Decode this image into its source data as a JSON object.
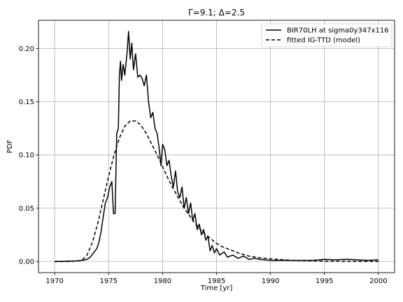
{
  "chart_data": {
    "type": "line",
    "title": "Γ=9.1; Δ=2.5",
    "xlabel": "Time [yr]",
    "ylabel": "PDF",
    "xlim": [
      1968.5,
      2001.5
    ],
    "ylim": [
      -0.0105,
      0.2265
    ],
    "grid": true,
    "legend_position": "top-right",
    "xticks": [
      1970,
      1975,
      1980,
      1985,
      1990,
      1995,
      2000
    ],
    "xtick_labels": [
      "1970",
      "1975",
      "1980",
      "1985",
      "1990",
      "1995",
      "2000"
    ],
    "yticks": [
      0.0,
      0.05,
      0.1,
      0.15,
      0.2
    ],
    "ytick_labels": [
      "0.00",
      "0.05",
      "0.10",
      "0.15",
      "0.20"
    ],
    "series": [
      {
        "name": "BIR70LH at sigma0y347x116",
        "style": "solid",
        "color": "#000000",
        "points": [
          [
            1970.0,
            0.0
          ],
          [
            1972.0,
            0.0005
          ],
          [
            1972.5,
            0.001
          ],
          [
            1973.0,
            0.002
          ],
          [
            1973.3,
            0.004
          ],
          [
            1973.6,
            0.008
          ],
          [
            1973.9,
            0.012
          ],
          [
            1974.1,
            0.018
          ],
          [
            1974.3,
            0.028
          ],
          [
            1974.5,
            0.042
          ],
          [
            1974.7,
            0.055
          ],
          [
            1974.9,
            0.06
          ],
          [
            1975.1,
            0.07
          ],
          [
            1975.3,
            0.075
          ],
          [
            1975.45,
            0.045
          ],
          [
            1975.6,
            0.045
          ],
          [
            1975.75,
            0.12
          ],
          [
            1975.9,
            0.125
          ],
          [
            1976.0,
            0.175
          ],
          [
            1976.1,
            0.188
          ],
          [
            1976.2,
            0.17
          ],
          [
            1976.35,
            0.185
          ],
          [
            1976.5,
            0.175
          ],
          [
            1976.7,
            0.195
          ],
          [
            1976.85,
            0.216
          ],
          [
            1977.0,
            0.19
          ],
          [
            1977.15,
            0.205
          ],
          [
            1977.3,
            0.18
          ],
          [
            1977.5,
            0.195
          ],
          [
            1977.7,
            0.173
          ],
          [
            1977.9,
            0.175
          ],
          [
            1978.1,
            0.172
          ],
          [
            1978.3,
            0.165
          ],
          [
            1978.5,
            0.175
          ],
          [
            1978.7,
            0.15
          ],
          [
            1978.9,
            0.135
          ],
          [
            1979.1,
            0.14
          ],
          [
            1979.3,
            0.125
          ],
          [
            1979.5,
            0.12
          ],
          [
            1979.7,
            0.105
          ],
          [
            1979.85,
            0.09
          ],
          [
            1980.0,
            0.11
          ],
          [
            1980.2,
            0.105
          ],
          [
            1980.4,
            0.09
          ],
          [
            1980.6,
            0.095
          ],
          [
            1980.8,
            0.08
          ],
          [
            1981.0,
            0.07
          ],
          [
            1981.2,
            0.085
          ],
          [
            1981.4,
            0.065
          ],
          [
            1981.6,
            0.06
          ],
          [
            1981.8,
            0.07
          ],
          [
            1982.0,
            0.05
          ],
          [
            1982.2,
            0.06
          ],
          [
            1982.4,
            0.045
          ],
          [
            1982.6,
            0.055
          ],
          [
            1982.8,
            0.038
          ],
          [
            1983.0,
            0.045
          ],
          [
            1983.2,
            0.03
          ],
          [
            1983.4,
            0.035
          ],
          [
            1983.6,
            0.025
          ],
          [
            1983.8,
            0.03
          ],
          [
            1984.0,
            0.02
          ],
          [
            1984.2,
            0.024
          ],
          [
            1984.4,
            0.01
          ],
          [
            1984.6,
            0.015
          ],
          [
            1984.8,
            0.008
          ],
          [
            1985.0,
            0.012
          ],
          [
            1985.3,
            0.006
          ],
          [
            1985.7,
            0.009
          ],
          [
            1986.0,
            0.004
          ],
          [
            1986.5,
            0.006
          ],
          [
            1987.0,
            0.003
          ],
          [
            1987.5,
            0.005
          ],
          [
            1988.0,
            0.002
          ],
          [
            1988.5,
            0.003
          ],
          [
            1989.0,
            0.002
          ],
          [
            1990.0,
            0.001
          ],
          [
            1992.0,
            0.001
          ],
          [
            1994.0,
            0.001
          ],
          [
            1995.0,
            0.002
          ],
          [
            1996.0,
            0.0015
          ],
          [
            1997.0,
            0.002
          ],
          [
            1998.0,
            0.0015
          ],
          [
            1999.0,
            0.001
          ],
          [
            2000.0,
            0.0015
          ]
        ]
      },
      {
        "name": "fitted IG-TTD (model)",
        "style": "dashed",
        "color": "#000000",
        "points": [
          [
            1970.0,
            0.0
          ],
          [
            1971.5,
            0.0
          ],
          [
            1972.5,
            0.001
          ],
          [
            1973.0,
            0.006
          ],
          [
            1973.5,
            0.018
          ],
          [
            1974.0,
            0.036
          ],
          [
            1974.5,
            0.058
          ],
          [
            1975.0,
            0.08
          ],
          [
            1975.5,
            0.1
          ],
          [
            1976.0,
            0.116
          ],
          [
            1976.5,
            0.127
          ],
          [
            1977.0,
            0.132
          ],
          [
            1977.5,
            0.132
          ],
          [
            1978.0,
            0.128
          ],
          [
            1978.5,
            0.12
          ],
          [
            1979.0,
            0.11
          ],
          [
            1979.5,
            0.1
          ],
          [
            1980.0,
            0.089
          ],
          [
            1980.5,
            0.078
          ],
          [
            1981.0,
            0.068
          ],
          [
            1981.5,
            0.059
          ],
          [
            1982.0,
            0.05
          ],
          [
            1982.5,
            0.043
          ],
          [
            1983.0,
            0.036
          ],
          [
            1983.5,
            0.03
          ],
          [
            1984.0,
            0.025
          ],
          [
            1984.5,
            0.021
          ],
          [
            1985.0,
            0.017
          ],
          [
            1985.5,
            0.014
          ],
          [
            1986.0,
            0.012
          ],
          [
            1987.0,
            0.008
          ],
          [
            1988.0,
            0.005
          ],
          [
            1989.0,
            0.0035
          ],
          [
            1990.0,
            0.0025
          ],
          [
            1992.0,
            0.001
          ],
          [
            1995.0,
            0.0003
          ],
          [
            2000.0,
            0.0
          ]
        ]
      }
    ]
  }
}
